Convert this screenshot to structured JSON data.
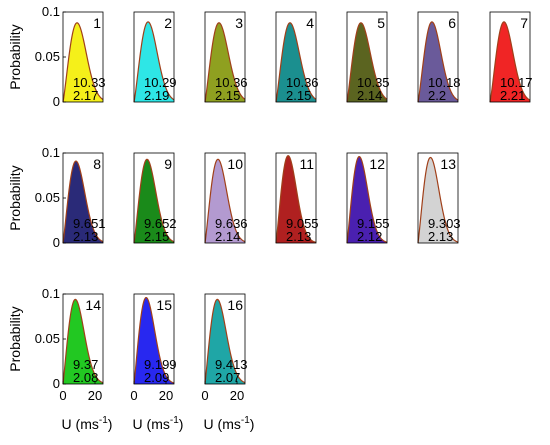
{
  "chart_data": {
    "type": "area",
    "layout": {
      "rows": 3,
      "cols": 7
    },
    "ylabel": "Probability",
    "xlabel_main": "U (ms",
    "xlabel_sup": "-1",
    "xlabel_end": ")",
    "xlim": [
      0,
      25
    ],
    "ylim": [
      0,
      0.1
    ],
    "yticks": [
      "0",
      "0.05",
      "0.1"
    ],
    "xticks": [
      0,
      20
    ],
    "xtick_labels": [
      "0",
      "20"
    ],
    "curve": {
      "type": "weibull",
      "shape_label": "k",
      "scale_label": "c"
    },
    "panels": [
      {
        "id": "1",
        "mean": "10.33",
        "shape": "2.17",
        "color": "#f5f01a",
        "peak": 0.088
      },
      {
        "id": "2",
        "mean": "10.29",
        "shape": "2.19",
        "color": "#2ee6e6",
        "peak": 0.089
      },
      {
        "id": "3",
        "mean": "10.36",
        "shape": "2.15",
        "color": "#8fa020",
        "peak": 0.088
      },
      {
        "id": "4",
        "mean": "10.36",
        "shape": "2.15",
        "color": "#1b8f8f",
        "peak": 0.088
      },
      {
        "id": "5",
        "mean": "10.35",
        "shape": "2.14",
        "color": "#5b6420",
        "peak": 0.088
      },
      {
        "id": "6",
        "mean": "10.18",
        "shape": "2.2",
        "color": "#6a5a9a",
        "peak": 0.089
      },
      {
        "id": "7",
        "mean": "10.17",
        "shape": "2.21",
        "color": "#f02525",
        "peak": 0.089
      },
      {
        "id": "8",
        "mean": "9.651",
        "shape": "2.13",
        "color": "#2a2a78",
        "peak": 0.091
      },
      {
        "id": "9",
        "mean": "9.652",
        "shape": "2.15",
        "color": "#1a8a1a",
        "peak": 0.093
      },
      {
        "id": "10",
        "mean": "9.636",
        "shape": "2.14",
        "color": "#b39ad0",
        "peak": 0.093
      },
      {
        "id": "11",
        "mean": "9.055",
        "shape": "2.13",
        "color": "#b02020",
        "peak": 0.097
      },
      {
        "id": "12",
        "mean": "9.155",
        "shape": "2.12",
        "color": "#4a20b0",
        "peak": 0.096
      },
      {
        "id": "13",
        "mean": "9.303",
        "shape": "2.13",
        "color": "#d3d3d3",
        "peak": 0.095
      },
      {
        "id": "14",
        "mean": "9.37",
        "shape": "2.08",
        "color": "#22c822",
        "peak": 0.094
      },
      {
        "id": "15",
        "mean": "9.199",
        "shape": "2.09",
        "color": "#2828f0",
        "peak": 0.096
      },
      {
        "id": "16",
        "mean": "9.413",
        "shape": "2.07",
        "color": "#1fa6a6",
        "peak": 0.094
      }
    ]
  }
}
